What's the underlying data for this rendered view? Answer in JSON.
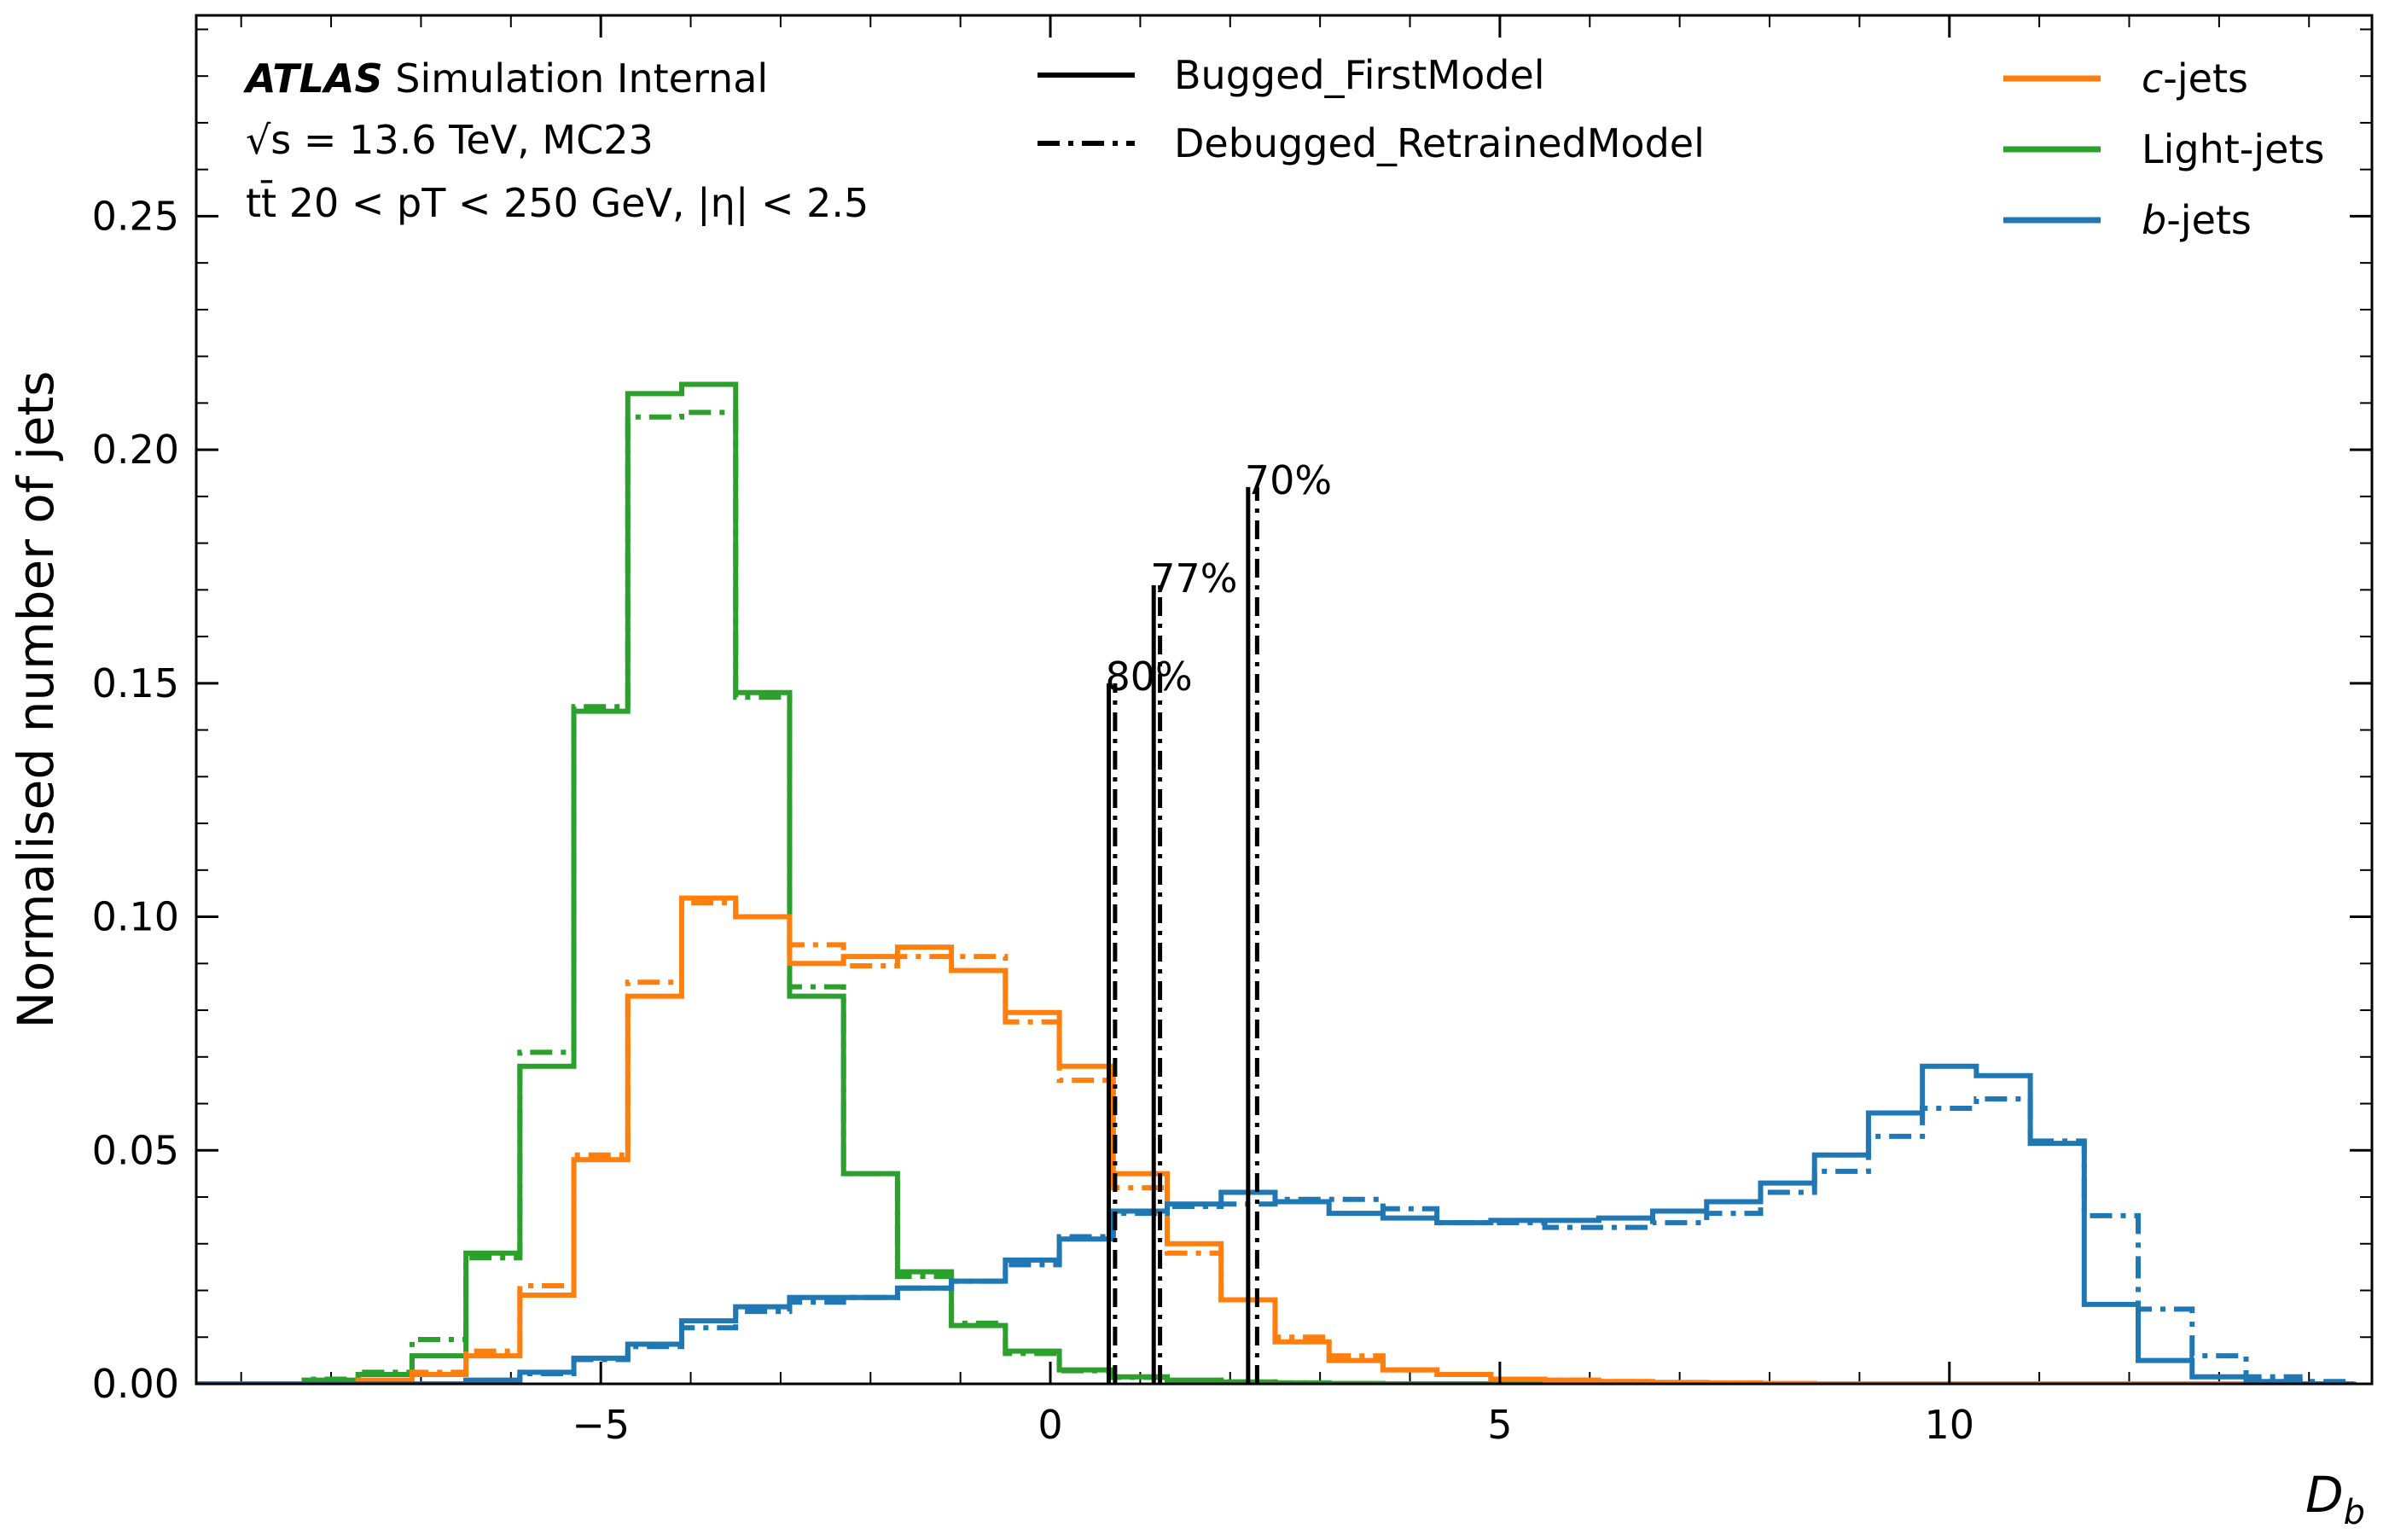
{
  "chart_data": {
    "type": "line",
    "title": "",
    "xlabel": "D_b",
    "ylabel": "Normalised number of jets",
    "xlim": [
      -9.5,
      14.7
    ],
    "ylim": [
      0,
      0.293
    ],
    "x_ticks": [
      {
        "value": -5,
        "label": "−5"
      },
      {
        "value": 0,
        "label": "0"
      },
      {
        "value": 5,
        "label": "5"
      },
      {
        "value": 10,
        "label": "10"
      }
    ],
    "y_ticks": [
      {
        "value": 0.0,
        "label": "0.00"
      },
      {
        "value": 0.05,
        "label": "0.05"
      },
      {
        "value": 0.1,
        "label": "0.10"
      },
      {
        "value": 0.15,
        "label": "0.15"
      },
      {
        "value": 0.2,
        "label": "0.20"
      },
      {
        "value": 0.25,
        "label": "0.25"
      }
    ],
    "annotation": {
      "atlas": "ATLAS",
      "line1_rest": " Simulation Internal",
      "line2": "√s = 13.6 TeV, MC23",
      "line3": "tt̄ 20 < pT < 250 GeV, |η| < 2.5"
    },
    "style_legend": [
      {
        "label": "Bugged_FirstModel",
        "dash": "solid"
      },
      {
        "label": "Debugged_RetrainedModel",
        "dash": "dashdot"
      }
    ],
    "class_legend": [
      {
        "label": "c-jets",
        "color": "#ff7f0e"
      },
      {
        "label": "Light-jets",
        "color": "#2ca02c"
      },
      {
        "label": "b-jets",
        "color": "#1f77b4"
      }
    ],
    "bin_edges": [
      -9.5,
      -8.9,
      -8.3,
      -7.7,
      -7.1,
      -6.5,
      -5.9,
      -5.3,
      -4.7,
      -4.1,
      -3.5,
      -2.9,
      -2.3,
      -1.7,
      -1.1,
      -0.5,
      0.1,
      0.7,
      1.3,
      1.9,
      2.5,
      3.1,
      3.7,
      4.3,
      4.9,
      5.5,
      6.1,
      6.7,
      7.3,
      7.9,
      8.5,
      9.1,
      9.7,
      10.3,
      10.9,
      11.5,
      12.1,
      12.7,
      13.3,
      13.9,
      14.5
    ],
    "series": [
      {
        "name": "Light-jets",
        "model": "Bugged_FirstModel",
        "color": "#2ca02c",
        "dash": "solid",
        "values": [
          0,
          0,
          0.0008,
          0.002,
          0.006,
          0.028,
          0.068,
          0.144,
          0.212,
          0.214,
          0.148,
          0.083,
          0.045,
          0.024,
          0.0125,
          0.007,
          0.003,
          0.0015,
          0.0008,
          0.0004,
          0.0002,
          0.0001,
          0,
          0,
          0,
          0,
          0,
          0,
          0,
          0,
          0,
          0,
          0,
          0,
          0,
          0,
          0,
          0,
          0,
          0
        ]
      },
      {
        "name": "Light-jets",
        "model": "Debugged_RetrainedModel",
        "color": "#2ca02c",
        "dash": "dashdot",
        "values": [
          0,
          0,
          0.001,
          0.0025,
          0.0095,
          0.027,
          0.071,
          0.145,
          0.207,
          0.208,
          0.147,
          0.085,
          0.045,
          0.023,
          0.013,
          0.0065,
          0.0028,
          0.0014,
          0.0007,
          0.0004,
          0.0002,
          0.0001,
          0,
          0,
          0,
          0,
          0,
          0,
          0,
          0,
          0,
          0,
          0,
          0,
          0,
          0,
          0,
          0,
          0,
          0
        ]
      },
      {
        "name": "c-jets",
        "model": "Bugged_FirstModel",
        "color": "#ff7f0e",
        "dash": "solid",
        "values": [
          0,
          0,
          0,
          0.0008,
          0.002,
          0.006,
          0.019,
          0.048,
          0.083,
          0.104,
          0.1,
          0.09,
          0.0915,
          0.0935,
          0.0885,
          0.0795,
          0.068,
          0.045,
          0.03,
          0.018,
          0.009,
          0.005,
          0.003,
          0.002,
          0.001,
          0.0008,
          0.0005,
          0.0003,
          0.0002,
          0.0001,
          0,
          0,
          0,
          0,
          0,
          0,
          0,
          0,
          0,
          0
        ]
      },
      {
        "name": "c-jets",
        "model": "Debugged_RetrainedModel",
        "color": "#ff7f0e",
        "dash": "dashdot",
        "values": [
          0,
          0,
          0,
          0.0006,
          0.0025,
          0.007,
          0.021,
          0.049,
          0.086,
          0.103,
          0.1,
          0.094,
          0.0895,
          0.0915,
          0.0915,
          0.0775,
          0.065,
          0.042,
          0.028,
          0.018,
          0.01,
          0.006,
          0.003,
          0.002,
          0.001,
          0.0008,
          0.0005,
          0.0003,
          0.0002,
          0.0001,
          0,
          0,
          0,
          0,
          0,
          0,
          0,
          0,
          0,
          0
        ]
      },
      {
        "name": "b-jets",
        "model": "Bugged_FirstModel",
        "color": "#1f77b4",
        "dash": "solid",
        "values": [
          0,
          0,
          0,
          0,
          0,
          0.0008,
          0.0025,
          0.0055,
          0.0085,
          0.0135,
          0.0165,
          0.0185,
          0.0185,
          0.0205,
          0.022,
          0.0265,
          0.031,
          0.037,
          0.0385,
          0.041,
          0.039,
          0.0365,
          0.0355,
          0.0345,
          0.035,
          0.035,
          0.0355,
          0.037,
          0.039,
          0.043,
          0.049,
          0.058,
          0.068,
          0.066,
          0.0515,
          0.017,
          0.005,
          0.0015,
          0.0005,
          0
        ]
      },
      {
        "name": "b-jets",
        "model": "Debugged_RetrainedModel",
        "color": "#1f77b4",
        "dash": "dashdot",
        "values": [
          0,
          0,
          0,
          0,
          0,
          0.0007,
          0.0022,
          0.0052,
          0.008,
          0.012,
          0.0155,
          0.0175,
          0.0185,
          0.0205,
          0.022,
          0.0255,
          0.0315,
          0.0365,
          0.038,
          0.0385,
          0.0395,
          0.0395,
          0.0375,
          0.0345,
          0.0345,
          0.0335,
          0.0335,
          0.0345,
          0.0365,
          0.041,
          0.0455,
          0.053,
          0.059,
          0.061,
          0.052,
          0.036,
          0.016,
          0.006,
          0.0015,
          0.0005
        ]
      }
    ],
    "wp_lines": [
      {
        "label": "80%",
        "x_solid": 0.65,
        "x_dash": 0.72,
        "height": 0.15
      },
      {
        "label": "77%",
        "x_solid": 1.15,
        "x_dash": 1.22,
        "height": 0.171
      },
      {
        "label": "70%",
        "x_solid": 2.2,
        "x_dash": 2.3,
        "height": 0.192
      }
    ]
  }
}
